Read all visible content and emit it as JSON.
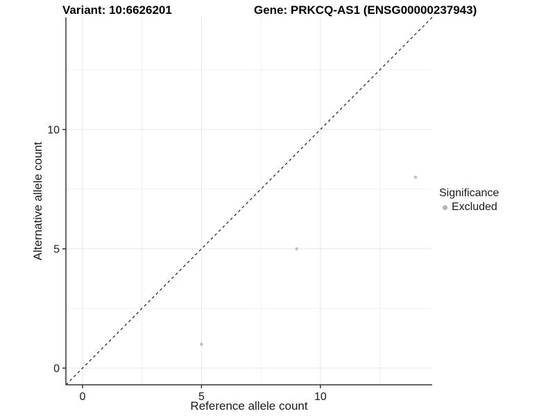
{
  "chart_data": {
    "type": "scatter",
    "titles": {
      "left": "Variant: 10:6626201",
      "right": "Gene: PRKCQ-AS1 (ENSG00000237943)"
    },
    "xlabel": "Reference allele count",
    "ylabel": "Alternative allele count",
    "xlim": [
      -0.7,
      14.7
    ],
    "ylim": [
      -0.7,
      14.7
    ],
    "x_major_ticks": [
      0,
      5,
      10
    ],
    "y_major_ticks": [
      0,
      5,
      10
    ],
    "x_minor_gridlines": [
      2.5,
      7.5,
      12.5
    ],
    "y_minor_gridlines": [
      2.5,
      7.5,
      12.5
    ],
    "grid": "major and minor, light grey on white panel",
    "identity_line": {
      "style": "dashed",
      "color": "#1a1a1a",
      "from": -0.7,
      "to": 14.7
    },
    "series": [
      {
        "name": "Excluded",
        "color": "#c0c0c0",
        "points": [
          {
            "x": 5,
            "y": 1
          },
          {
            "x": 9,
            "y": 5
          },
          {
            "x": 14,
            "y": 8
          }
        ]
      }
    ],
    "legend": {
      "title": "Significance",
      "position": "right",
      "items": [
        {
          "label": "Excluded",
          "color": "#b3b3b3"
        }
      ]
    },
    "style_colors": {
      "grid_major": "#e6e6e6",
      "grid_minor": "#f2f2f2",
      "axis_line": "#333333",
      "tick_mark": "#333333",
      "tick_text": "#1a1a1a",
      "panel_background": "#ffffff"
    }
  }
}
